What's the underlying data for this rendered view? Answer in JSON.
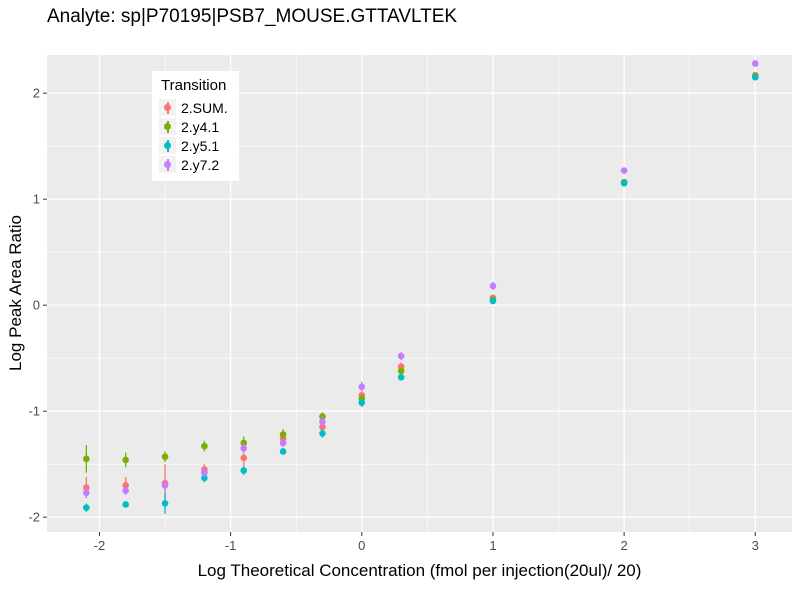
{
  "chart_data": {
    "type": "scatter",
    "title": "Analyte: sp|P70195|PSB7_MOUSE.GTTAVLTEK",
    "xlabel": "Log Theoretical Concentration (fmol per injection(20ul)/ 20)",
    "ylabel": "Log Peak Area Ratio",
    "xlim": [
      -2.4,
      3.28
    ],
    "ylim": [
      -2.14,
      2.36
    ],
    "x_ticks": [
      -2,
      -1,
      0,
      1,
      2,
      3
    ],
    "y_ticks": [
      -2,
      -1,
      0,
      1,
      2
    ],
    "x_minor": [
      -1.5,
      -0.5,
      0.5,
      1.5,
      2.5
    ],
    "y_minor": [
      -1.5,
      -0.5,
      0.5,
      1.5
    ],
    "grid": true,
    "legend": {
      "title": "Transition",
      "position": "inside-top-left"
    },
    "colors": {
      "panel_bg": "#EBEBEB",
      "grid": "#FFFFFF",
      "tick_text": "#4D4D4D",
      "tick_mark": "#333333"
    },
    "x": [
      -2.1,
      -1.8,
      -1.5,
      -1.2,
      -0.9,
      -0.6,
      -0.3,
      0,
      0.3,
      1,
      2,
      3
    ],
    "series": [
      {
        "name": "2.SUM.",
        "color": "#F8766D",
        "y": [
          -1.72,
          -1.7,
          -1.68,
          -1.55,
          -1.44,
          -1.26,
          -1.15,
          -0.85,
          -0.58,
          0.07,
          1.16,
          2.17
        ],
        "yerr": [
          0.1,
          0.08,
          0.18,
          0.05,
          0.08,
          0.05,
          0.04,
          0.04,
          0.04,
          0.03,
          0.02,
          0.02
        ]
      },
      {
        "name": "2.y4.1",
        "color": "#7CAE00",
        "y": [
          -1.45,
          -1.46,
          -1.43,
          -1.33,
          -1.3,
          -1.22,
          -1.05,
          -0.88,
          -0.62,
          0.05,
          1.16,
          2.16
        ],
        "yerr": [
          0.13,
          0.07,
          0.05,
          0.05,
          0.06,
          0.05,
          0.04,
          0.03,
          0.03,
          0.03,
          0.02,
          0.02
        ]
      },
      {
        "name": "2.y5.1",
        "color": "#00BFC4",
        "y": [
          -1.91,
          -1.88,
          -1.87,
          -1.63,
          -1.56,
          -1.38,
          -1.21,
          -0.92,
          -0.68,
          0.04,
          1.15,
          2.15
        ],
        "yerr": [
          0.04,
          0.03,
          0.1,
          0.04,
          0.04,
          0.03,
          0.04,
          0.04,
          0.03,
          0.03,
          0.02,
          0.02
        ]
      },
      {
        "name": "2.y7.2",
        "color": "#C77CFF",
        "y": [
          -1.77,
          -1.75,
          -1.7,
          -1.58,
          -1.35,
          -1.3,
          -1.1,
          -0.77,
          -0.48,
          0.18,
          1.27,
          2.28
        ],
        "yerr": [
          0.05,
          0.04,
          0.05,
          0.04,
          0.05,
          0.04,
          0.05,
          0.05,
          0.04,
          0.04,
          0.02,
          0.02
        ]
      }
    ]
  }
}
